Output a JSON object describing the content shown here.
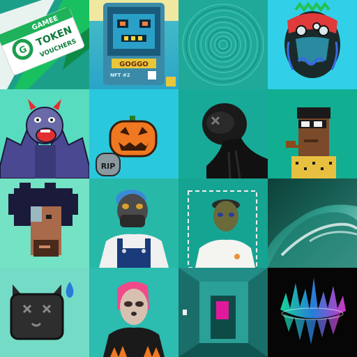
{
  "grid": {
    "tiles": [
      {
        "texts": {
          "brand": "GAMEE",
          "logo": "G",
          "line1": "TOKEN",
          "line2": "VOUCHERS"
        }
      },
      {
        "texts": {
          "title": "GOGGO",
          "code": "NFT #2"
        }
      },
      {
        "texts": {}
      },
      {
        "texts": {}
      },
      {
        "texts": {}
      },
      {
        "texts": {
          "tomb": "RIP"
        }
      },
      {
        "texts": {}
      },
      {
        "texts": {}
      },
      {
        "texts": {}
      },
      {
        "texts": {}
      },
      {
        "texts": {}
      },
      {
        "texts": {}
      },
      {
        "texts": {}
      },
      {
        "texts": {}
      },
      {
        "texts": {}
      },
      {
        "texts": {}
      }
    ]
  }
}
